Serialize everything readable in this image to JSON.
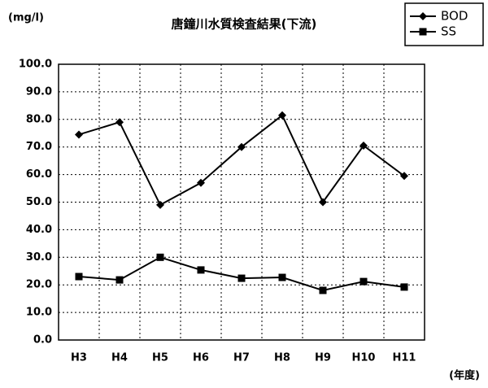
{
  "chart_data": {
    "type": "line",
    "title": "唐鐘川水質検査結果(下流)",
    "y_label": "(mg/l)",
    "x_label": "(年度)",
    "categories": [
      "H3",
      "H4",
      "H5",
      "H6",
      "H7",
      "H8",
      "H9",
      "H10",
      "H11"
    ],
    "series": [
      {
        "name": "BOD",
        "color": "#000000",
        "marker": "diamond",
        "values": [
          74.5,
          79,
          49,
          57,
          70,
          81.5,
          50,
          70.5,
          59.5
        ]
      },
      {
        "name": "SS",
        "color": "#000000",
        "marker": "square",
        "values": [
          23,
          21.8,
          30,
          25.4,
          22.4,
          22.7,
          18,
          21.2,
          19.2
        ]
      }
    ],
    "ylim": [
      0,
      100
    ],
    "yticks": [
      {
        "value": 0,
        "label": "0.0"
      },
      {
        "value": 10,
        "label": "10.0"
      },
      {
        "value": 20,
        "label": "20.0"
      },
      {
        "value": 30,
        "label": "30.0"
      },
      {
        "value": 40,
        "label": "40.0"
      },
      {
        "value": 50,
        "label": "50.0"
      },
      {
        "value": 60,
        "label": "60.0"
      },
      {
        "value": 70,
        "label": "70.0"
      },
      {
        "value": 80,
        "label": "80.0"
      },
      {
        "value": 90,
        "label": "90.0"
      },
      {
        "value": 100,
        "label": "100.0"
      }
    ],
    "grid": true,
    "legend": "upper right"
  }
}
